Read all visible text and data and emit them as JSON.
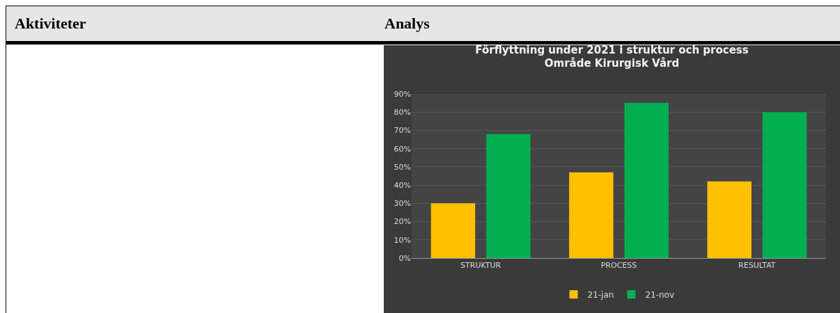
{
  "chart_data": {
    "type": "bar",
    "title": "Förflyttning under 2021 i struktur och process\nOmråde Kirurgisk Vård",
    "categories": [
      "STRUKTUR",
      "PROCESS",
      "RESULTAT"
    ],
    "series": [
      {
        "name": "21-jan",
        "color": "#ffc000",
        "values": [
          30,
          47,
          42
        ]
      },
      {
        "name": "21-nov",
        "color": "#00b050",
        "values": [
          68,
          85,
          80
        ]
      }
    ],
    "ylim": [
      0,
      90
    ],
    "yticks": [
      {
        "value": 0,
        "label": "0%"
      },
      {
        "value": 10,
        "label": "10%"
      },
      {
        "value": 20,
        "label": "20%"
      },
      {
        "value": 30,
        "label": "30%"
      },
      {
        "value": 40,
        "label": "40%"
      },
      {
        "value": 50,
        "label": "50%"
      },
      {
        "value": 60,
        "label": "60%"
      },
      {
        "value": 70,
        "label": "70%"
      },
      {
        "value": 80,
        "label": "80%"
      },
      {
        "value": 90,
        "label": "90%"
      }
    ],
    "grid": "y",
    "legend": "bottom",
    "annotations": [
      "Aktiviteter",
      "Analys"
    ]
  }
}
